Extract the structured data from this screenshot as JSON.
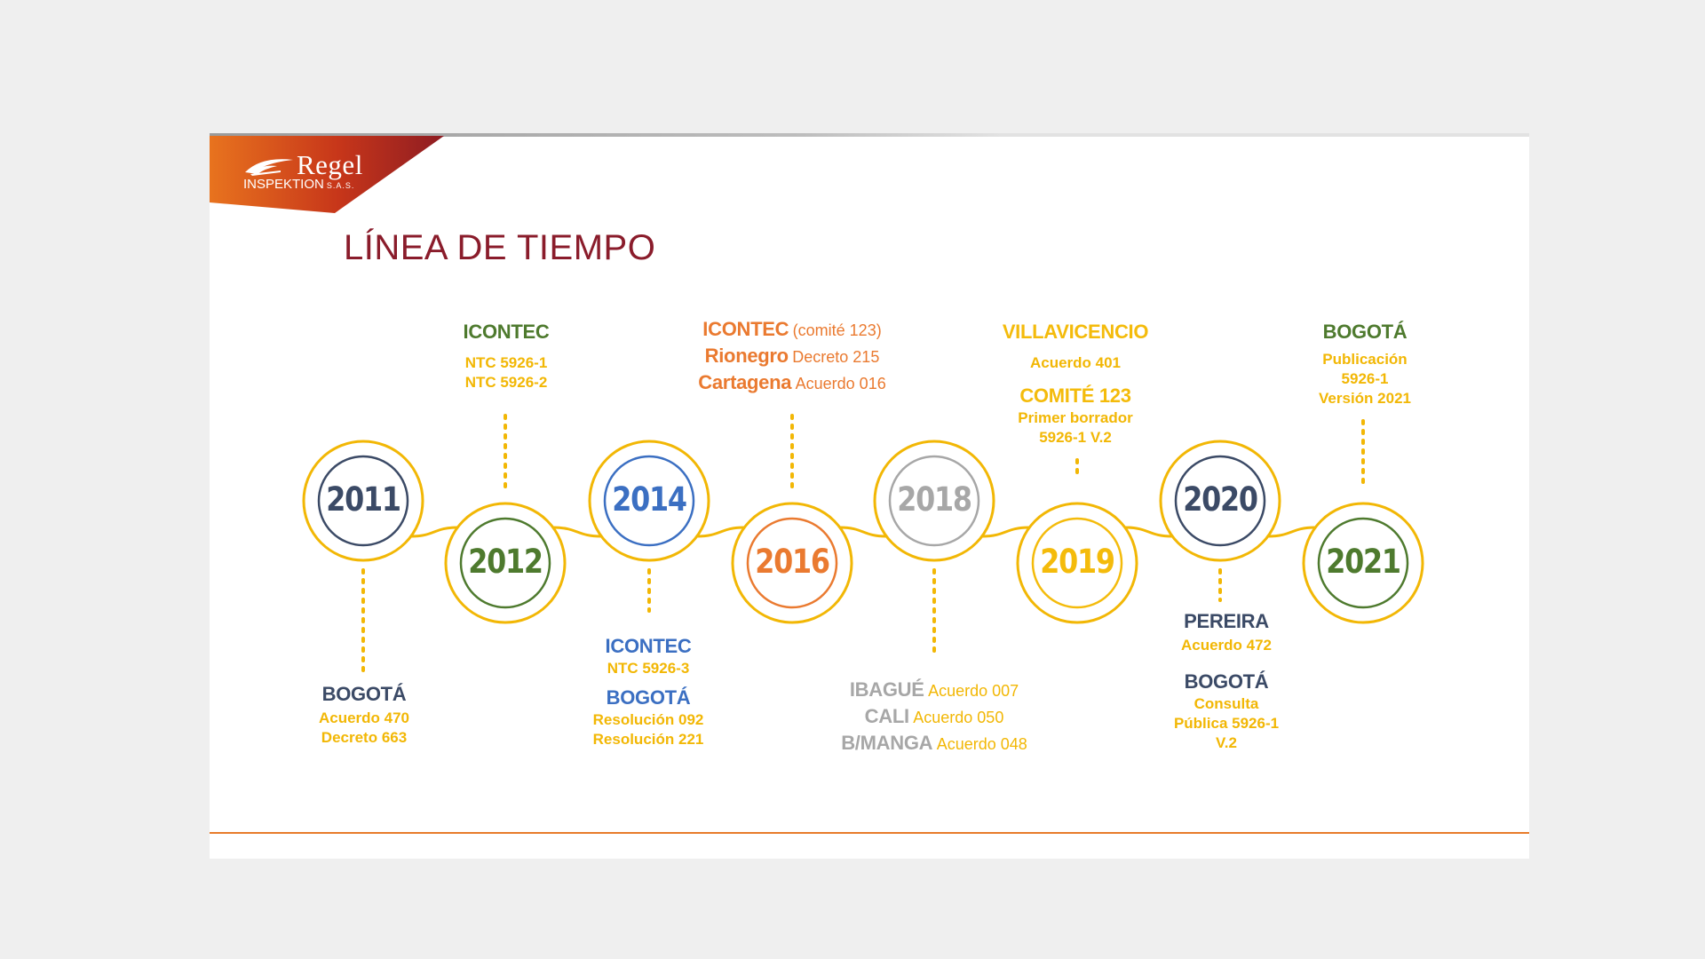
{
  "logo": {
    "brand": "Regel",
    "subtitle": "INSPEKTION",
    "suffix": "S.A.S."
  },
  "title": "LÍNEA DE TIEMPO",
  "colors": {
    "navy": "#3b4a66",
    "green": "#4e7a2e",
    "blue": "#3b6fc2",
    "orange": "#ea7a30",
    "gray": "#a7a7a7",
    "yellow": "#f4bb0b",
    "accent": "#8a1c2b",
    "track": "#f2b705"
  },
  "years": [
    "2011",
    "2012",
    "2014",
    "2016",
    "2018",
    "2019",
    "2020",
    "2021"
  ],
  "events": {
    "e2011": {
      "head": "BOGOTÁ",
      "lines": [
        "Acuerdo 470",
        "Decreto 663"
      ]
    },
    "e2012": {
      "head": "ICONTEC",
      "lines": [
        "NTC 5926-1",
        "NTC 5926-2"
      ]
    },
    "e2014": {
      "head1": "ICONTEC",
      "line1": "NTC 5926-3",
      "head2": "BOGOTÁ",
      "lines2": [
        "Resolución 092",
        "Resolución 221"
      ]
    },
    "e2016": {
      "rows": [
        {
          "name": "ICONTEC",
          "detail": "(comité 123)"
        },
        {
          "name": "Rionegro",
          "detail": "Decreto 215"
        },
        {
          "name": "Cartagena",
          "detail": "Acuerdo 016"
        }
      ]
    },
    "e2018": {
      "rows": [
        {
          "name": "IBAGUÉ",
          "detail": "Acuerdo 007"
        },
        {
          "name": "CALI",
          "detail": "Acuerdo 050"
        },
        {
          "name": "B/MANGA",
          "detail": "Acuerdo 048"
        }
      ]
    },
    "e2019": {
      "head1": "VILLAVICENCIO",
      "line1": "Acuerdo 401",
      "head2": "COMITÉ 123",
      "lines2": [
        "Primer borrador",
        "5926-1 V.2"
      ]
    },
    "e2020": {
      "head1": "PEREIRA",
      "line1": "Acuerdo 472",
      "head2": "BOGOTÁ",
      "lines2": [
        "Consulta",
        "Pública 5926-1",
        "V.2"
      ]
    },
    "e2021": {
      "head": "BOGOTÁ",
      "lines": [
        "Publicación",
        "5926-1",
        "Versión 2021"
      ]
    }
  }
}
